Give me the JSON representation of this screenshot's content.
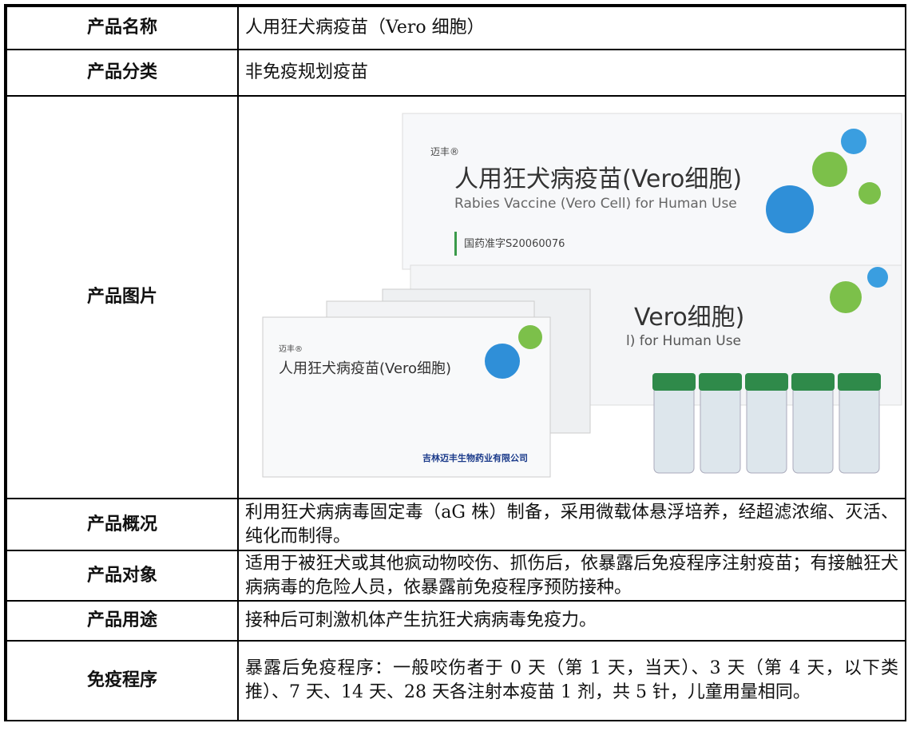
{
  "table": {
    "rows": [
      [
        "产品名称",
        "人用狂犬病疫苗（Vero 细胞）"
      ],
      [
        "产品分类",
        "非免疫规划疫苗"
      ],
      [
        "产品图片",
        ""
      ],
      [
        "产品概况",
        "利用狂犬病病毒固定毒（aG 株）制备，采用微载体悬浮培养，经超滤浓缩、灭活、纯化而制得。"
      ],
      [
        "产品对象",
        "适用于被狂犬或其他疯动物咬伤、抓伤后，依暴露后免疫程序注射疫苗；有接触狂犬病病毒的危险人员，依暴露前免疫程序预防接种。"
      ],
      [
        "产品用途",
        "接种后可刺激机体产生抗狂犬病病毒免疫力。"
      ],
      [
        "免疫程序",
        "暴露后免疫程序：一般咬伤者于 0 天（第 1 天，当天）、3 天（第 4 天，以下类推）、7 天、14 天、28 天各注射本疫苗 1 剂，共 5 针，儿童用量相同。"
      ]
    ]
  },
  "image": {
    "brand": "迈丰®",
    "name_cn": "人用狂犬病疫苗(Vero细胞)",
    "name_en": "Rabies Vaccine (Vero Cell) for Human Use",
    "approval": "国药准字S20060076",
    "name_cn_partial": "Vero细胞)",
    "name_en_partial": "l) for Human Use",
    "company": "吉林迈丰生物药业有限公司"
  }
}
